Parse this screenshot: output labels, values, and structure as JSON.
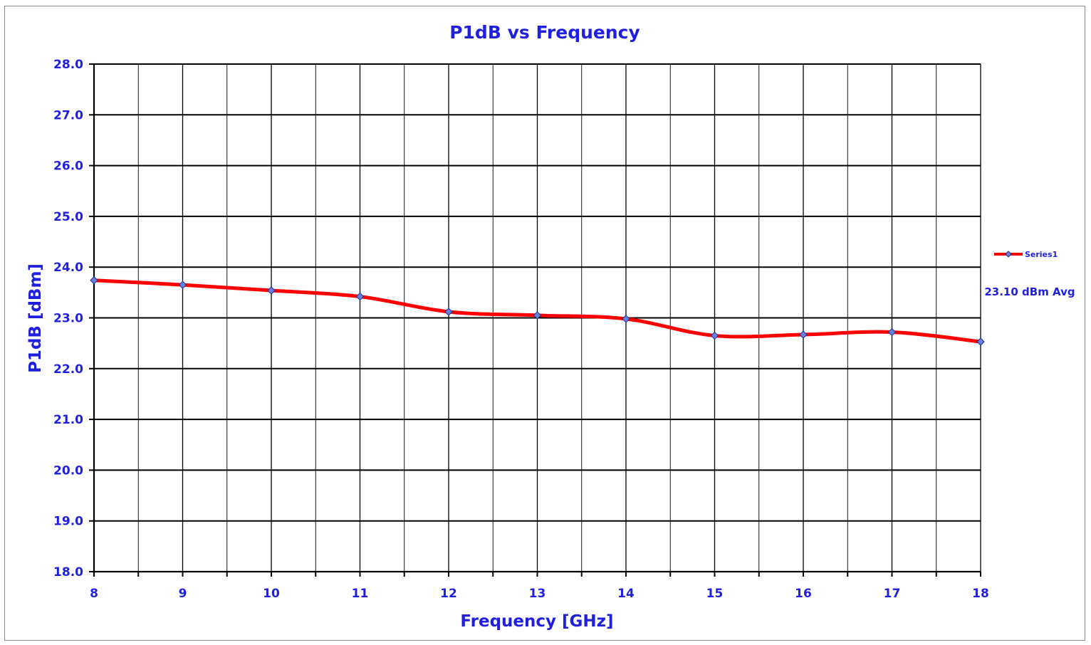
{
  "chart_data": {
    "type": "line",
    "title": "P1dB vs Frequency",
    "xlabel": "Frequency [GHz]",
    "ylabel": "P1dB [dBm]",
    "xlim": [
      8,
      18
    ],
    "ylim": [
      18.0,
      28.0
    ],
    "x_ticks": [
      "8",
      "9",
      "10",
      "11",
      "12",
      "13",
      "14",
      "15",
      "16",
      "17",
      "18"
    ],
    "y_ticks": [
      "18.0",
      "19.0",
      "20.0",
      "21.0",
      "22.0",
      "23.0",
      "24.0",
      "25.0",
      "26.0",
      "27.0",
      "28.0"
    ],
    "grid": true,
    "smooth": true,
    "legend_position": "right",
    "series": [
      {
        "name": "Series1",
        "color": "#ff0000",
        "marker_color": "#6a7fd6",
        "x": [
          8,
          9,
          10,
          11,
          12,
          13,
          14,
          15,
          16,
          17,
          18
        ],
        "y": [
          23.74,
          23.65,
          23.54,
          23.42,
          23.12,
          23.05,
          22.98,
          22.65,
          22.67,
          22.72,
          22.53
        ]
      }
    ],
    "annotations": [
      "23.10 dBm Avg"
    ]
  }
}
